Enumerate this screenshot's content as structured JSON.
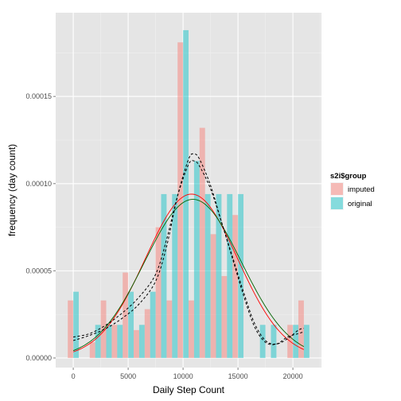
{
  "chart_data": {
    "type": "bar",
    "xlabel": "Daily Step Count",
    "ylabel": "frequency (day count)",
    "xlim": [
      -1600,
      22600
    ],
    "ylim": [
      -5.5e-06,
      0.000198
    ],
    "x_ticks": [
      0,
      5000,
      10000,
      15000,
      20000
    ],
    "x_tick_labels": [
      "0",
      "5000",
      "10000",
      "15000",
      "20000"
    ],
    "y_ticks": [
      0,
      5e-05,
      0.0001,
      0.00015
    ],
    "y_tick_labels": [
      "0.00000",
      "0.00005",
      "0.00010",
      "0.00015"
    ],
    "grid": true,
    "bin_centers": [
      0,
      1000,
      2000,
      3000,
      4000,
      5000,
      6000,
      7000,
      8000,
      9000,
      10000,
      11000,
      12000,
      13000,
      14000,
      15000,
      16000,
      17000,
      18000,
      19000,
      20000,
      21000
    ],
    "bin_width": 1000,
    "series": [
      {
        "name": "imputed",
        "color": "#f8766d",
        "values": [
          3.3e-05,
          0,
          9e-06,
          3.3e-05,
          1.9e-05,
          4.9e-05,
          1.6e-05,
          2.8e-05,
          7.5e-05,
          3.3e-05,
          0.000181,
          3.3e-05,
          0.000132,
          7.1e-05,
          4.7e-05,
          8.2e-05,
          0,
          0,
          0,
          0,
          1.9e-05,
          3.3e-05
        ]
      },
      {
        "name": "original",
        "color": "#00bfc4",
        "values": [
          3.8e-05,
          0,
          1.9e-05,
          1.9e-05,
          1.9e-05,
          3.8e-05,
          1.9e-05,
          3.8e-05,
          9.4e-05,
          9.4e-05,
          0.000188,
          0.000113,
          9.4e-05,
          9.4e-05,
          9.4e-05,
          9.4e-05,
          0,
          1.9e-05,
          1.9e-05,
          0,
          1.9e-05,
          1.9e-05
        ]
      }
    ],
    "normal_curves": [
      {
        "color": "#ff0000",
        "mean": 10766,
        "sd": 4200,
        "peak": 9.4e-05
      },
      {
        "color": "#006400",
        "mean": 10900,
        "sd": 4400,
        "peak": 9.1e-05
      }
    ],
    "density_curves": [
      {
        "style": "dashed",
        "points": [
          [
            0,
            1.2e-05
          ],
          [
            1500,
            1.4e-05
          ],
          [
            3000,
            1.9e-05
          ],
          [
            4500,
            2.6e-05
          ],
          [
            6000,
            3.5e-05
          ],
          [
            7500,
            4.8e-05
          ],
          [
            8500,
            6.8e-05
          ],
          [
            9500,
            9.3e-05
          ],
          [
            10500,
            0.000111
          ],
          [
            11000,
            0.000113
          ],
          [
            11500,
            0.00011
          ],
          [
            12500,
            9.7e-05
          ],
          [
            13500,
            7.8e-05
          ],
          [
            14500,
            5.8e-05
          ],
          [
            15500,
            3.8e-05
          ],
          [
            16500,
            2e-05
          ],
          [
            17500,
            1e-05
          ],
          [
            18500,
            8e-06
          ],
          [
            19500,
            1.1e-05
          ],
          [
            20500,
            1.6e-05
          ],
          [
            21000,
            1.7e-05
          ]
        ]
      },
      {
        "style": "dashed",
        "points": [
          [
            0,
            1e-05
          ],
          [
            1500,
            1.3e-05
          ],
          [
            3000,
            1.7e-05
          ],
          [
            4500,
            2.3e-05
          ],
          [
            6000,
            3.1e-05
          ],
          [
            7500,
            4.4e-05
          ],
          [
            8500,
            6.4e-05
          ],
          [
            9500,
            9.3e-05
          ],
          [
            10500,
            0.000114
          ],
          [
            11000,
            0.000117
          ],
          [
            11500,
            0.000114
          ],
          [
            12500,
            9.9e-05
          ],
          [
            13500,
            7.8e-05
          ],
          [
            14500,
            5.7e-05
          ],
          [
            15500,
            3.6e-05
          ],
          [
            16500,
            1.8e-05
          ],
          [
            17500,
            9e-06
          ],
          [
            18500,
            8e-06
          ],
          [
            19500,
            1.2e-05
          ],
          [
            20500,
            1.4e-05
          ],
          [
            21000,
            1.5e-05
          ]
        ]
      }
    ],
    "legend": {
      "title": "s2i$group",
      "position": "right",
      "items": [
        {
          "label": "imputed",
          "color": "#f8766d"
        },
        {
          "label": "original",
          "color": "#00bfc4"
        }
      ]
    }
  }
}
